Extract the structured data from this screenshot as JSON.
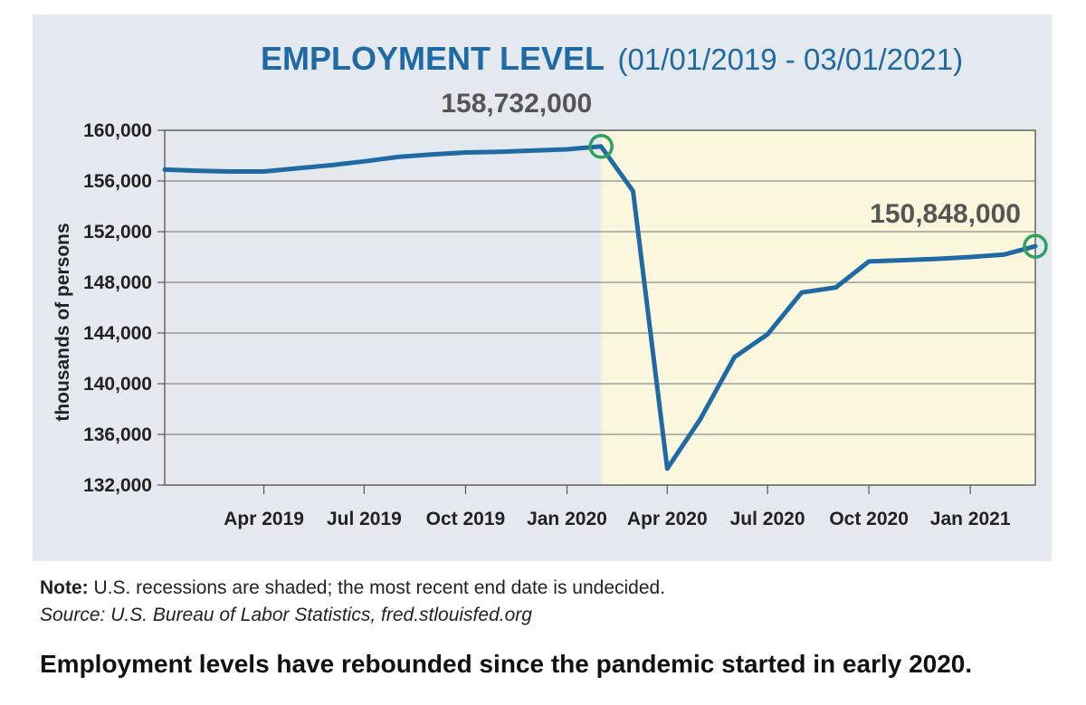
{
  "note": {
    "label": "Note:",
    "text": " U.S. recessions are shaded; the most recent end date is undecided."
  },
  "source": "Source: U.S. Bureau of Labor Statistics, fred.stlouisfed.org",
  "caption": "Employment levels have rebounded since the pandemic started in early 2020.",
  "colors": {
    "line": "#1f6aa5",
    "recession_shade": "#fbf7dc",
    "marker": "#2fa060",
    "panel_background": "#e3e9ef",
    "title": "#1f6aa5"
  },
  "chart_data": {
    "type": "line",
    "title": "EMPLOYMENT LEVEL",
    "subtitle": "(01/01/2019 - 03/01/2021)",
    "xlabel": "",
    "ylabel": "thousands of persons",
    "ylim": [
      132000,
      160000
    ],
    "yticks": [
      160000,
      156000,
      152000,
      148000,
      144000,
      140000,
      136000,
      132000
    ],
    "ytick_labels": [
      "160,000",
      "156,000",
      "152,000",
      "148,000",
      "144,000",
      "140,000",
      "136,000",
      "132,000"
    ],
    "xlim": [
      "2019-01-01",
      "2021-03-01"
    ],
    "xticks": [
      "2019-04-01",
      "2019-07-01",
      "2019-10-01",
      "2020-01-01",
      "2020-04-01",
      "2020-07-01",
      "2020-10-01",
      "2021-01-01"
    ],
    "xtick_labels": [
      "Apr 2019",
      "Jul 2019",
      "Oct 2019",
      "Jan 2020",
      "Apr 2020",
      "Jul 2020",
      "Oct 2020",
      "Jan 2021"
    ],
    "grid": true,
    "recession_shading": {
      "start": "2020-02-01",
      "end": "2021-03-01"
    },
    "series": [
      {
        "x": [
          "2019-01-01",
          "2019-02-01",
          "2019-03-01",
          "2019-04-01",
          "2019-05-01",
          "2019-06-01",
          "2019-07-01",
          "2019-08-01",
          "2019-09-01",
          "2019-10-01",
          "2019-11-01",
          "2019-12-01",
          "2020-01-01",
          "2020-02-01",
          "2020-03-01",
          "2020-04-01",
          "2020-05-01",
          "2020-06-01",
          "2020-07-01",
          "2020-08-01",
          "2020-09-01",
          "2020-10-01",
          "2020-11-01",
          "2020-12-01",
          "2021-01-01",
          "2021-02-01",
          "2021-03-01"
        ],
        "values": [
          156900,
          156800,
          156750,
          156750,
          157000,
          157250,
          157550,
          157900,
          158100,
          158250,
          158300,
          158400,
          158500,
          158732,
          155200,
          133300,
          137200,
          142100,
          143900,
          147200,
          147600,
          149650,
          149750,
          149850,
          150000,
          150200,
          150848
        ]
      }
    ],
    "annotations": [
      {
        "x": "2020-02-01",
        "value": 158732,
        "label": "158,732,000"
      },
      {
        "x": "2021-03-01",
        "value": 150848,
        "label": "150,848,000"
      }
    ]
  }
}
